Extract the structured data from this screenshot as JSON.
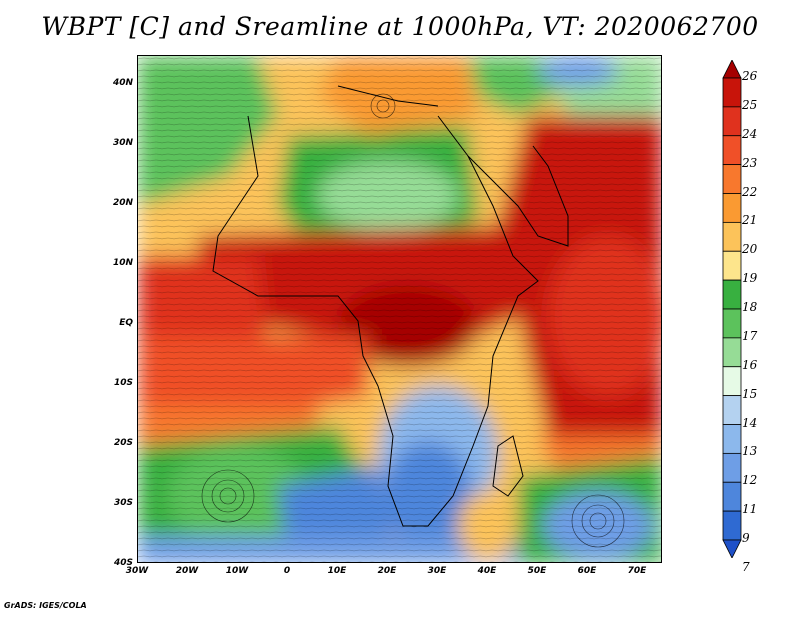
{
  "title": "WBPT [C] and Sreamline at 1000hPa, VT: 2020062700",
  "credit": "GrADS: IGES/COLA",
  "map": {
    "lat_range": [
      -40,
      45
    ],
    "lon_range": [
      -30,
      75
    ],
    "lat_ticks": [
      "40N",
      "30N",
      "20N",
      "10N",
      "EQ",
      "10S",
      "20S",
      "30S",
      "40S"
    ],
    "lon_ticks": [
      "30W",
      "20W",
      "10W",
      "0",
      "10E",
      "20E",
      "30E",
      "40E",
      "50E",
      "60E",
      "70E"
    ]
  },
  "colorbar": {
    "labels": [
      "26",
      "25",
      "24",
      "23",
      "22",
      "21",
      "20",
      "19",
      "18",
      "17",
      "16",
      "15",
      "14",
      "13",
      "12",
      "11",
      "9",
      "7"
    ],
    "colors": [
      "#a50000",
      "#c8140a",
      "#e0321e",
      "#f05028",
      "#f8782d",
      "#fa9a32",
      "#fcc35a",
      "#fde58c",
      "#38b040",
      "#5cc25c",
      "#96dc96",
      "#e6fae6",
      "#b4d2f0",
      "#8cb8ec",
      "#6e9ee6",
      "#4e86dc",
      "#2f6ad2",
      "#1e50c8"
    ]
  }
}
